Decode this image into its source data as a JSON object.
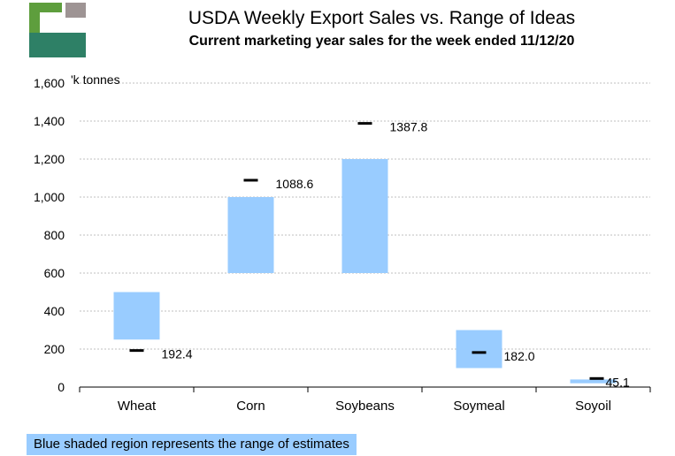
{
  "header": {
    "title": "USDA Weekly Export Sales vs. Range of Ideas",
    "subtitle": "Current marketing year sales for the week ended 11/12/20"
  },
  "logo": {
    "icon": "company-logo-icon"
  },
  "chart_data": {
    "type": "bar",
    "subtype": "floating-range-with-marker",
    "ylabel": "'k tonnes",
    "ylim": [
      0,
      1600
    ],
    "yticks": [
      0,
      200,
      400,
      600,
      800,
      1000,
      1200,
      1400,
      1600
    ],
    "ytick_labels": [
      "0",
      "200",
      "400",
      "600",
      "800",
      "1,000",
      "1,200",
      "1,400",
      "1,600"
    ],
    "grid": true,
    "categories": [
      "Wheat",
      "Corn",
      "Soybeans",
      "Soymeal",
      "Soyoil"
    ],
    "ranges": [
      {
        "low": 250,
        "high": 500
      },
      {
        "low": 600,
        "high": 1000
      },
      {
        "low": 600,
        "high": 1200
      },
      {
        "low": 100,
        "high": 300
      },
      {
        "low": 20,
        "high": 40
      }
    ],
    "actual": [
      192.4,
      1088.6,
      1387.8,
      182.0,
      45.1
    ],
    "actual_labels": [
      "192.4",
      "1088.6",
      "1387.8",
      "182.0",
      "45.1"
    ],
    "colors": {
      "range": "#99ccff",
      "marker": "#000000",
      "grid": "#bfbfbf"
    }
  },
  "footer": {
    "note": "Blue shaded region represents the range of estimates"
  }
}
